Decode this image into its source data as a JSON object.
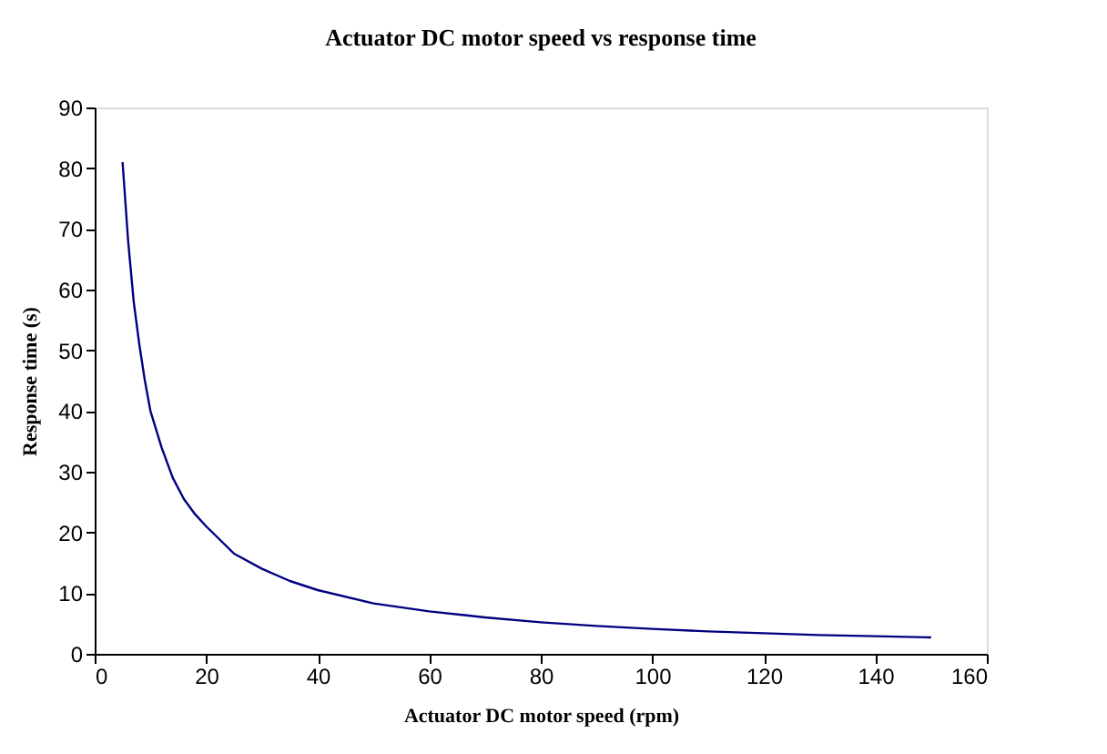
{
  "chart_data": {
    "type": "line",
    "title": "Actuator DC motor speed vs response time",
    "xlabel": "Actuator DC motor speed (rpm)",
    "ylabel": "Response time (s)",
    "x": [
      5,
      6,
      7,
      8,
      9,
      10,
      12,
      14,
      16,
      18,
      20,
      25,
      30,
      35,
      40,
      50,
      60,
      70,
      80,
      90,
      100,
      110,
      120,
      130,
      140,
      150
    ],
    "series": [
      {
        "color": "#000080",
        "values": [
          81,
          68,
          58,
          51,
          45,
          40,
          34,
          29,
          25.5,
          23,
          21,
          16.5,
          14,
          12,
          10.5,
          8.3,
          7,
          6,
          5.2,
          4.6,
          4.1,
          3.7,
          3.4,
          3.1,
          2.9,
          2.7
        ]
      }
    ],
    "xlim": [
      0,
      160
    ],
    "xticks": [
      0,
      20,
      40,
      60,
      80,
      100,
      120,
      140,
      160
    ],
    "ylim": [
      0,
      90
    ],
    "yticks": [
      0,
      10,
      20,
      30,
      40,
      50,
      60,
      70,
      80,
      90
    ],
    "grid": false,
    "legend": false,
    "marker": "none",
    "line_style": "solid"
  }
}
